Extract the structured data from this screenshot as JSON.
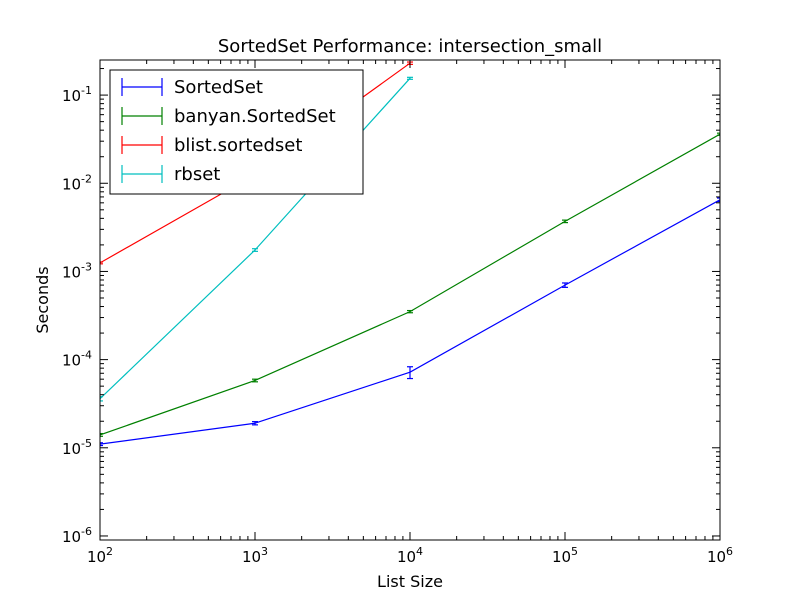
{
  "chart_data": {
    "type": "line",
    "title": "SortedSet Performance: intersection_small",
    "xlabel": "List Size",
    "ylabel": "Seconds",
    "xscale": "log",
    "yscale": "log",
    "xlim": [
      100,
      1000000
    ],
    "ylim": [
      9e-07,
      0.25
    ],
    "x_ticks": [
      {
        "value": 100,
        "base": "10",
        "exp": "2"
      },
      {
        "value": 1000,
        "base": "10",
        "exp": "3"
      },
      {
        "value": 10000,
        "base": "10",
        "exp": "4"
      },
      {
        "value": 100000,
        "base": "10",
        "exp": "5"
      },
      {
        "value": 1000000,
        "base": "10",
        "exp": "6"
      }
    ],
    "y_ticks": [
      {
        "value": 1e-06,
        "base": "10",
        "exp": "-6"
      },
      {
        "value": 1e-05,
        "base": "10",
        "exp": "-5"
      },
      {
        "value": 0.0001,
        "base": "10",
        "exp": "-4"
      },
      {
        "value": 0.001,
        "base": "10",
        "exp": "-3"
      },
      {
        "value": 0.01,
        "base": "10",
        "exp": "-2"
      },
      {
        "value": 0.1,
        "base": "10",
        "exp": "-1"
      }
    ],
    "legend_position": "top-left",
    "series": [
      {
        "name": "SortedSet",
        "color": "#0000ff",
        "x": [
          100,
          1000,
          10000,
          100000,
          1000000
        ],
        "y": [
          1.1e-05,
          1.9e-05,
          7.2e-05,
          0.0007,
          0.0065
        ],
        "err": [
          4e-07,
          8e-07,
          1.1e-05,
          4e-05,
          0.0003
        ]
      },
      {
        "name": "banyan.SortedSet",
        "color": "#008000",
        "x": [
          100,
          1000,
          10000,
          100000,
          1000000
        ],
        "y": [
          1.4e-05,
          5.8e-05,
          0.00035,
          0.0037,
          0.036
        ],
        "err": [
          5e-07,
          2e-06,
          1e-05,
          0.00012,
          0.001
        ]
      },
      {
        "name": "blist.sortedset",
        "color": "#ff0000",
        "x": [
          100,
          1000,
          10000
        ],
        "y": [
          0.00125,
          0.0125,
          0.23
        ],
        "err": [
          3e-05,
          0.0003,
          0.007
        ]
      },
      {
        "name": "rbset",
        "color": "#00bfbf",
        "x": [
          100,
          1000,
          10000
        ],
        "y": [
          3.6e-05,
          0.00175,
          0.155
        ],
        "err": [
          2e-06,
          6e-05,
          0.004
        ]
      }
    ]
  }
}
